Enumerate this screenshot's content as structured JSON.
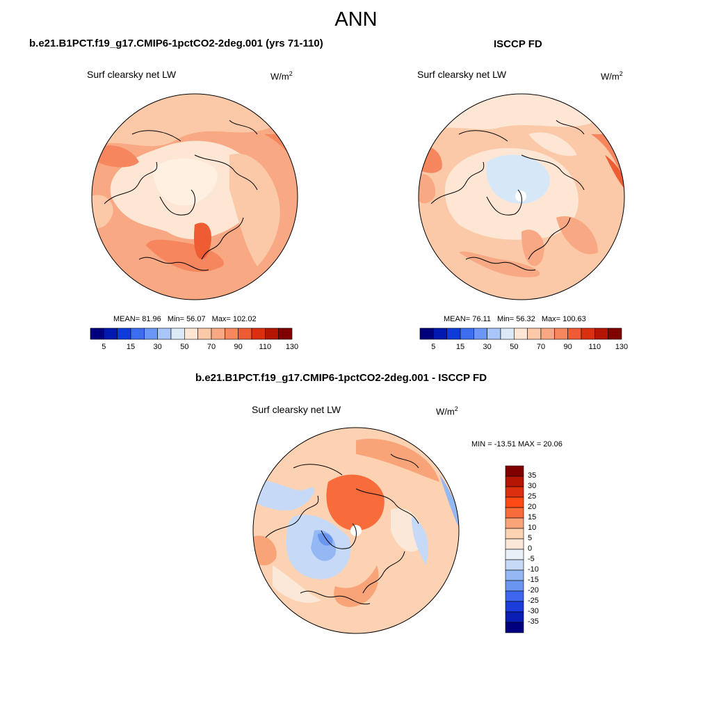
{
  "figure": {
    "season": "ANN"
  },
  "panels": [
    {
      "title": "b.e21.B1PCT.f19_g17.CMIP6-1pctCO2-2deg.001 (yrs 71-110)",
      "variable": "Surf clearsky net LW",
      "units_base": "W/m",
      "units_exp": "2",
      "stats": {
        "mean": "MEAN=  81.96",
        "min": "Min=  56.07",
        "max": "Max= 102.02"
      }
    },
    {
      "title": "ISCCP FD",
      "variable": "Surf clearsky net LW",
      "units_base": "W/m",
      "units_exp": "2",
      "stats": {
        "mean": "MEAN=  76.11",
        "min": "Min=  56.32",
        "max": "Max= 100.63"
      }
    },
    {
      "title": "b.e21.B1PCT.f19_g17.CMIP6-1pctCO2-2deg.001 - ISCCP FD",
      "variable": "Surf clearsky net LW",
      "units_base": "W/m",
      "units_exp": "2",
      "stats": {
        "range": "MIN = -13.51 MAX =  20.06"
      }
    }
  ],
  "colorbar_abs": {
    "ticks": [
      "5",
      "15",
      "30",
      "50",
      "70",
      "90",
      "110",
      "130"
    ],
    "colors": [
      "#00007f",
      "#0018b0",
      "#0f3cd8",
      "#3c6cf0",
      "#6c96f5",
      "#a8c6f8",
      "#dceaf8",
      "#fde6d4",
      "#fbc9a8",
      "#f8a882",
      "#f5865e",
      "#ee5c34",
      "#dc2f10",
      "#b51503",
      "#800000"
    ]
  },
  "colorbar_diff": {
    "ticks": [
      "35",
      "30",
      "25",
      "20",
      "15",
      "10",
      "5",
      "0",
      "-5",
      "-10",
      "-15",
      "-20",
      "-25",
      "-30",
      "-35"
    ],
    "colors": [
      "#800000",
      "#b51503",
      "#dc2f10",
      "#ff4a14",
      "#f86c3c",
      "#f8a478",
      "#fcd2b2",
      "#fbe8d8",
      "#e8f0f8",
      "#c6daf8",
      "#94b8f4",
      "#6a96f0",
      "#3c66ee",
      "#1c3cdc",
      "#0a1eb4",
      "#00007f"
    ]
  },
  "map_colors": {
    "land": "#000000",
    "pole_gap": "#ffffff"
  }
}
